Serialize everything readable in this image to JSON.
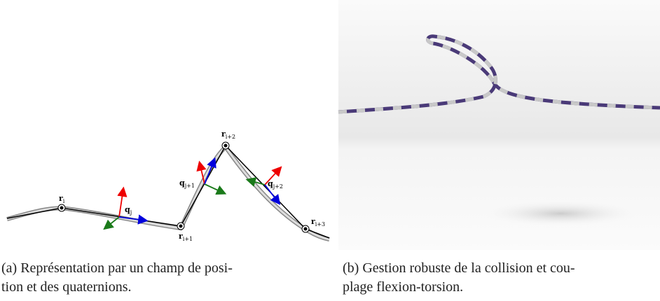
{
  "figure": {
    "panel_a": {
      "labels": [
        {
          "base": "r",
          "sub": "i"
        },
        {
          "base": "q",
          "sub": "j"
        },
        {
          "base": "r",
          "sub": "i+1"
        },
        {
          "base": "q",
          "sub": "j+1"
        },
        {
          "base": "r",
          "sub": "i+2"
        },
        {
          "base": "q",
          "sub": "j+2"
        },
        {
          "base": "r",
          "sub": "i+3"
        }
      ],
      "caption": [
        "(a) Représentation par un champ de posi-",
        "tion et des quaternions."
      ]
    },
    "panel_b": {
      "caption": [
        "(b) Gestion robuste de la collision et cou-",
        "plage flexion-torsion."
      ]
    }
  }
}
